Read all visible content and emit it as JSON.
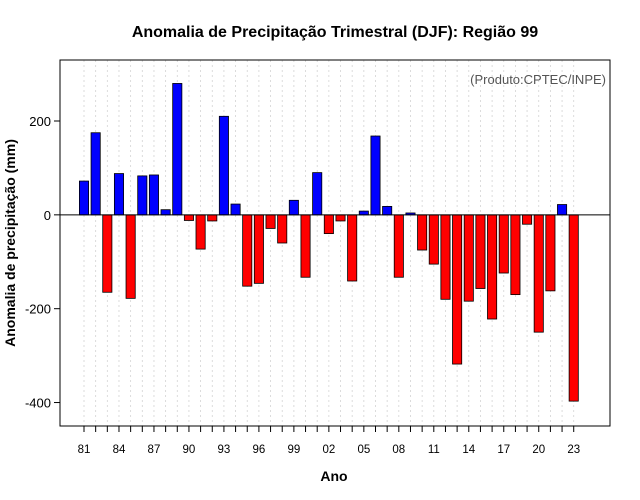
{
  "chart_data": {
    "type": "bar",
    "title": "Anomalia de Precipitação Trimestral (DJF): Região 99",
    "xlabel": "Ano",
    "ylabel": "Anomalia de precipitação (mm)",
    "credit": "(Produto:CPTEC/INPE)",
    "ylim": [
      -450,
      330
    ],
    "yticks": [
      -400,
      -200,
      0,
      200
    ],
    "grid": true,
    "colors": {
      "positive": "#0000ff",
      "negative": "#ff0000",
      "edge": "#000000",
      "grid": "#d3d3d3"
    },
    "years": [
      1981,
      1982,
      1983,
      1984,
      1985,
      1986,
      1987,
      1988,
      1989,
      1990,
      1991,
      1992,
      1993,
      1994,
      1995,
      1996,
      1997,
      1998,
      1999,
      2000,
      2001,
      2002,
      2003,
      2004,
      2005,
      2006,
      2007,
      2008,
      2009,
      2010,
      2011,
      2012,
      2013,
      2014,
      2015,
      2016,
      2017,
      2018,
      2019,
      2020,
      2021,
      2022,
      2023
    ],
    "values": [
      72,
      175,
      -165,
      88,
      -178,
      83,
      85,
      11,
      280,
      -12,
      -73,
      -13,
      210,
      23,
      -152,
      -146,
      -29,
      -60,
      31,
      -133,
      90,
      -40,
      -13,
      -141,
      8,
      168,
      18,
      -133,
      4,
      -75,
      -105,
      -180,
      -318,
      -184,
      -157,
      -222,
      -124,
      -170,
      -20,
      -250,
      -162,
      22,
      -397
    ],
    "xtick_labels": [
      "81",
      "84",
      "87",
      "90",
      "93",
      "96",
      "99",
      "02",
      "05",
      "08",
      "11",
      "14",
      "17",
      "20",
      "23"
    ]
  }
}
